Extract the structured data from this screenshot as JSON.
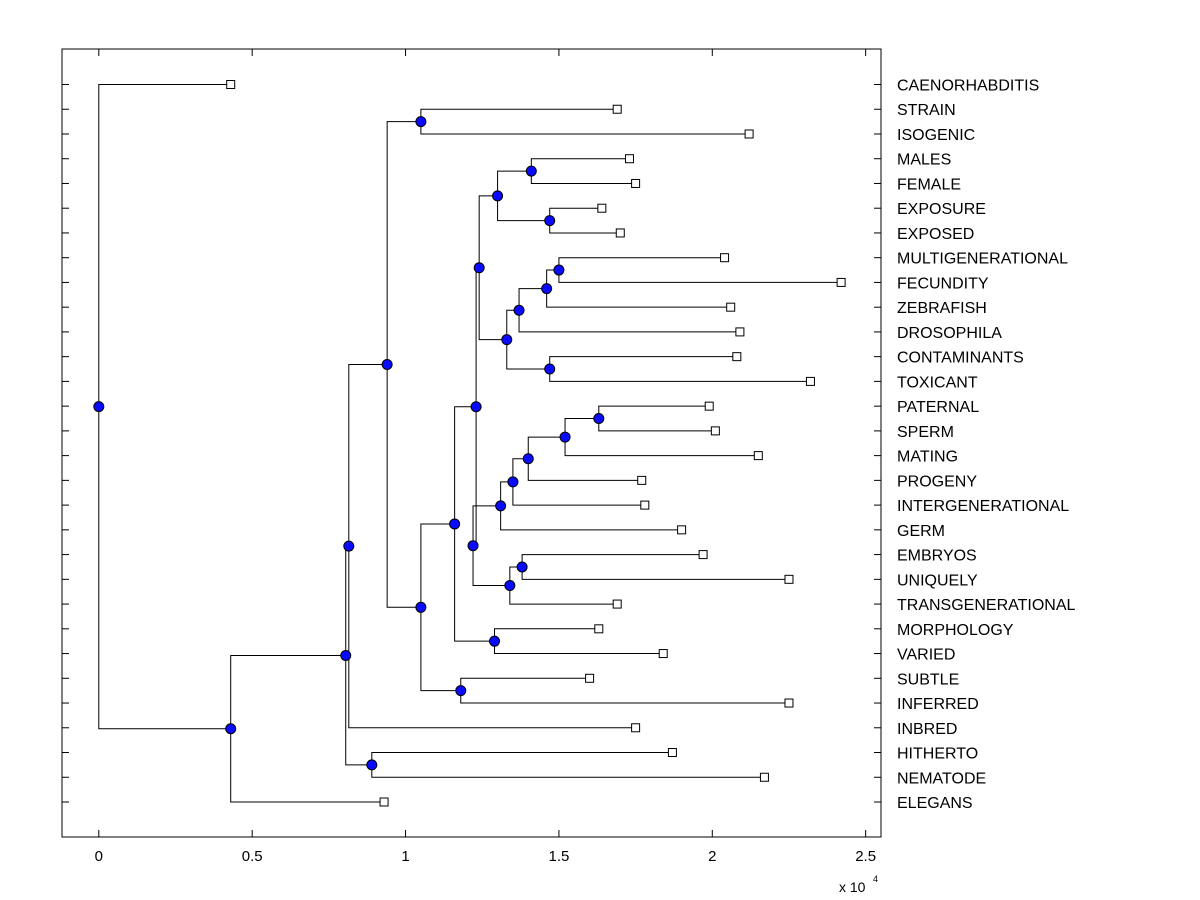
{
  "chart_data": {
    "type": "dendrogram",
    "title": "",
    "xlabel": "",
    "ylabel": "",
    "x_multiplier": "x 10",
    "x_multiplier_exp": "4",
    "xlim": [
      -0.12,
      2.55
    ],
    "xticks": [
      {
        "value": 0,
        "label": "0"
      },
      {
        "value": 0.5,
        "label": "0.5"
      },
      {
        "value": 1,
        "label": "1"
      },
      {
        "value": 1.5,
        "label": "1.5"
      },
      {
        "value": 2,
        "label": "2"
      },
      {
        "value": 2.5,
        "label": "2.5"
      }
    ],
    "leaves": [
      {
        "label": "CAENORHABDITIS",
        "x": 0.43
      },
      {
        "label": "STRAIN",
        "x": 1.69
      },
      {
        "label": "ISOGENIC",
        "x": 2.12
      },
      {
        "label": "MALES",
        "x": 1.73
      },
      {
        "label": "FEMALE",
        "x": 1.75
      },
      {
        "label": "EXPOSURE",
        "x": 1.64
      },
      {
        "label": "EXPOSED",
        "x": 1.7
      },
      {
        "label": "MULTIGENERATIONAL",
        "x": 2.04
      },
      {
        "label": "FECUNDITY",
        "x": 2.42
      },
      {
        "label": "ZEBRAFISH",
        "x": 2.06
      },
      {
        "label": "DROSOPHILA",
        "x": 2.09
      },
      {
        "label": "CONTAMINANTS",
        "x": 2.08
      },
      {
        "label": "TOXICANT",
        "x": 2.32
      },
      {
        "label": "PATERNAL",
        "x": 1.99
      },
      {
        "label": "SPERM",
        "x": 2.01
      },
      {
        "label": "MATING",
        "x": 2.15
      },
      {
        "label": "PROGENY",
        "x": 1.77
      },
      {
        "label": "INTERGENERATIONAL",
        "x": 1.78
      },
      {
        "label": "GERM",
        "x": 1.9
      },
      {
        "label": "EMBRYOS",
        "x": 1.97
      },
      {
        "label": "UNIQUELY",
        "x": 2.25
      },
      {
        "label": "TRANSGENERATIONAL",
        "x": 1.69
      },
      {
        "label": "MORPHOLOGY",
        "x": 1.63
      },
      {
        "label": "VARIED",
        "x": 1.84
      },
      {
        "label": "SUBTLE",
        "x": 1.6
      },
      {
        "label": "INFERRED",
        "x": 2.25
      },
      {
        "label": "INBRED",
        "x": 1.75
      },
      {
        "label": "HITHERTO",
        "x": 1.87
      },
      {
        "label": "NEMATODE",
        "x": 2.17
      },
      {
        "label": "ELEGANS",
        "x": 0.93
      }
    ],
    "merges": [
      {
        "id": "n1",
        "a": "L1",
        "b": "L2",
        "x": 1.05
      },
      {
        "id": "n2",
        "a": "L3",
        "b": "L4",
        "x": 1.41
      },
      {
        "id": "n3",
        "a": "L5",
        "b": "L6",
        "x": 1.47
      },
      {
        "id": "n4",
        "a": "n2",
        "b": "n3",
        "x": 1.3
      },
      {
        "id": "n5",
        "a": "L7",
        "b": "L8",
        "x": 1.5
      },
      {
        "id": "n6",
        "a": "n5",
        "b": "L9",
        "x": 1.46
      },
      {
        "id": "n7",
        "a": "n6",
        "b": "L10",
        "x": 1.37
      },
      {
        "id": "n8",
        "a": "L11",
        "b": "L12",
        "x": 1.47
      },
      {
        "id": "n9",
        "a": "n7",
        "b": "n8",
        "x": 1.33
      },
      {
        "id": "n10",
        "a": "n4",
        "b": "n9",
        "x": 1.24
      },
      {
        "id": "n11",
        "a": "L13",
        "b": "L14",
        "x": 1.63
      },
      {
        "id": "n12",
        "a": "n11",
        "b": "L15",
        "x": 1.52
      },
      {
        "id": "n13",
        "a": "n12",
        "b": "L16",
        "x": 1.4
      },
      {
        "id": "n14",
        "a": "n13",
        "b": "L17",
        "x": 1.35
      },
      {
        "id": "n15",
        "a": "n14",
        "b": "L18",
        "x": 1.31
      },
      {
        "id": "n16",
        "a": "L19",
        "b": "L20",
        "x": 1.38
      },
      {
        "id": "n17",
        "a": "n16",
        "b": "L21",
        "x": 1.34
      },
      {
        "id": "n18",
        "a": "n15",
        "b": "n17",
        "x": 1.22
      },
      {
        "id": "n19",
        "a": "n10",
        "b": "n18",
        "x": 1.23
      },
      {
        "id": "n20",
        "a": "L22",
        "b": "L23",
        "x": 1.29
      },
      {
        "id": "n21",
        "a": "n19",
        "b": "n20",
        "x": 1.16
      },
      {
        "id": "n22",
        "a": "L24",
        "b": "L25",
        "x": 1.18
      },
      {
        "id": "n23",
        "a": "n21",
        "b": "n22",
        "x": 1.05
      },
      {
        "id": "n24",
        "a": "n1",
        "b": "n23",
        "x": 0.94
      },
      {
        "id": "n25",
        "a": "n24",
        "b": "L26",
        "x": 0.815
      },
      {
        "id": "n26",
        "a": "L27",
        "b": "L28",
        "x": 0.89
      },
      {
        "id": "n27",
        "a": "n25",
        "b": "n26",
        "x": 0.805
      },
      {
        "id": "n28",
        "a": "n27",
        "b": "L29",
        "x": 0.43
      },
      {
        "id": "n29",
        "a": "L0",
        "b": "n28",
        "x": 0.0
      }
    ]
  }
}
